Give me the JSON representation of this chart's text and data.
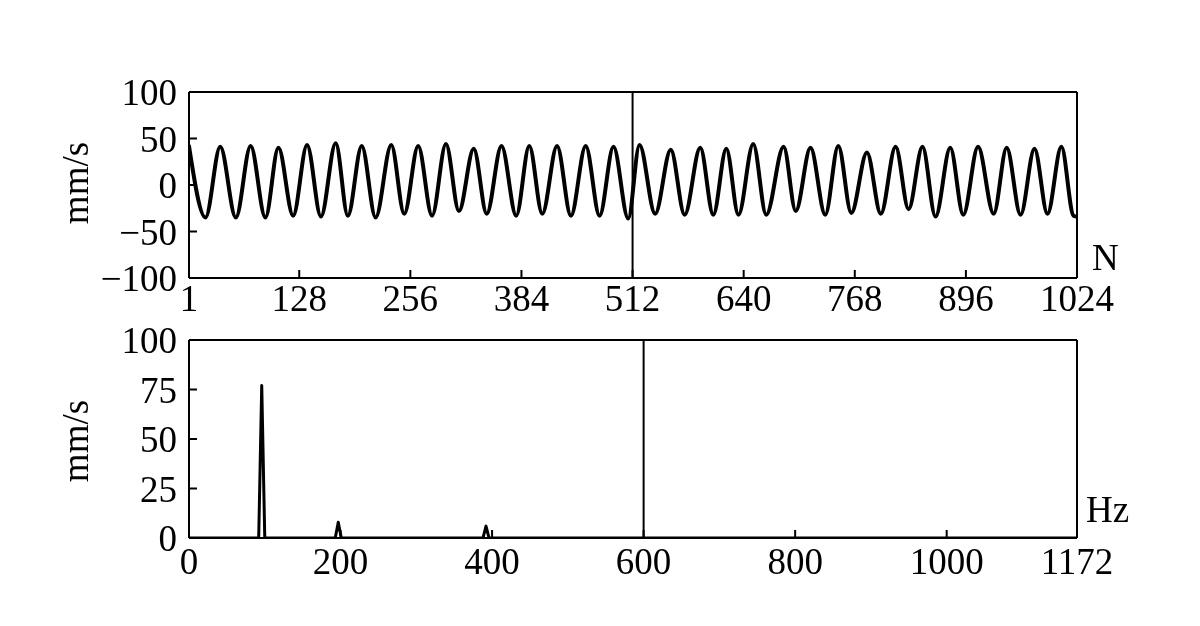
{
  "chart_data": [
    {
      "type": "line",
      "xlabel": "N",
      "ylabel": "mm/s",
      "x": [
        1,
        20,
        37,
        55,
        72,
        89,
        104,
        121,
        137,
        153,
        170,
        184,
        200,
        216,
        234,
        249,
        265,
        281,
        297,
        312,
        329,
        344,
        361,
        378,
        393,
        408,
        425,
        441,
        458,
        474,
        490,
        507,
        520,
        538,
        556,
        572,
        590,
        605,
        620,
        634,
        651,
        666,
        686,
        700,
        717,
        734,
        749,
        764,
        782,
        798,
        815,
        830,
        846,
        861,
        878,
        893,
        910,
        928,
        943,
        959,
        975,
        990,
        1006,
        1020,
        1024
      ],
      "series": [
        {
          "color": "#000000",
          "values": [
            42,
            -35,
            41,
            -35,
            42,
            -35,
            40,
            -33,
            43,
            -34,
            45,
            -33,
            42,
            -35,
            43,
            -31,
            42,
            -33,
            44,
            -28,
            39,
            -31,
            42,
            -33,
            42,
            -31,
            42,
            -33,
            42,
            -33,
            41,
            -36,
            43,
            -31,
            38,
            -32,
            40,
            -32,
            39,
            -32,
            44,
            -32,
            41,
            -28,
            40,
            -32,
            42,
            -30,
            35,
            -31,
            41,
            -26,
            41,
            -34,
            40,
            -32,
            41,
            -31,
            40,
            -32,
            39,
            -31,
            41,
            -33,
            -34
          ]
        }
      ],
      "xlim": [
        1,
        1024
      ],
      "xticks": [
        1,
        128,
        256,
        384,
        512,
        640,
        768,
        896,
        1024
      ],
      "ylim": [
        -100,
        100
      ],
      "yticks": [
        {
          "value": -100,
          "label": "−100"
        },
        {
          "value": -50,
          "label": "−50"
        },
        0,
        50,
        100
      ],
      "ref_lines": [
        {
          "axis": "x",
          "value": 512,
          "color": "#000000"
        }
      ]
    },
    {
      "type": "line",
      "xlabel": "Hz",
      "ylabel": "mm/s",
      "x": [
        0,
        92,
        96,
        100,
        193,
        197,
        201,
        388,
        392,
        396,
        1172
      ],
      "series": [
        {
          "color": "#000000",
          "values": [
            0,
            0,
            77,
            0,
            0,
            8,
            0,
            0,
            6,
            0,
            0
          ]
        }
      ],
      "xlim": [
        0,
        1172
      ],
      "xticks": [
        0,
        200,
        400,
        600,
        800,
        1000,
        1172
      ],
      "ylim": [
        0,
        100
      ],
      "yticks": [
        0,
        25,
        50,
        75,
        100
      ],
      "ref_lines": [
        {
          "axis": "x",
          "value": 600,
          "color": "#000000"
        }
      ]
    }
  ]
}
